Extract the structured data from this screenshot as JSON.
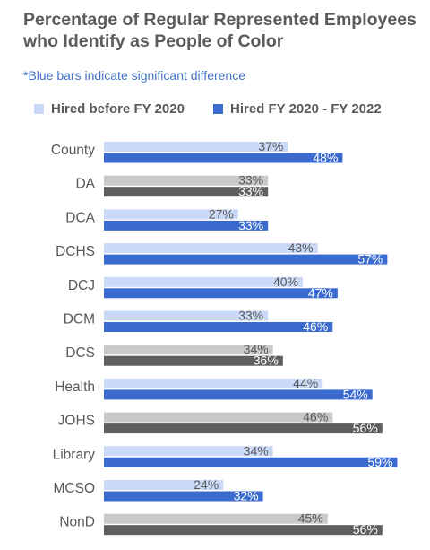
{
  "chart_data": {
    "type": "bar",
    "orientation": "horizontal",
    "title": "Percentage of Regular Represented Employees who Identify as People of Color",
    "subtitle": "*Blue bars indicate significant difference",
    "legend_position": "top",
    "categories": [
      "County",
      "DA",
      "DCA",
      "DCHS",
      "DCJ",
      "DCM",
      "DCS",
      "Health",
      "JOHS",
      "Library",
      "MCSO",
      "NonD"
    ],
    "series": [
      {
        "name": "Hired before FY 2020",
        "values": [
          37,
          33,
          27,
          43,
          40,
          33,
          34,
          44,
          46,
          34,
          24,
          45
        ]
      },
      {
        "name": "Hired FY 2020 - FY 2022",
        "values": [
          48,
          33,
          33,
          57,
          47,
          46,
          36,
          54,
          56,
          59,
          32,
          56
        ]
      }
    ],
    "significant": [
      true,
      false,
      true,
      true,
      true,
      true,
      false,
      true,
      false,
      true,
      true,
      false
    ],
    "value_suffix": "%",
    "colors": {
      "before_significant": "#c9d9f7",
      "after_significant": "#3c6bd0",
      "before_not_significant": "#c9c9c9",
      "after_not_significant": "#5e5e5e",
      "label_text": "#595959",
      "label_text_dark": "#ffffff"
    },
    "grid": false
  }
}
